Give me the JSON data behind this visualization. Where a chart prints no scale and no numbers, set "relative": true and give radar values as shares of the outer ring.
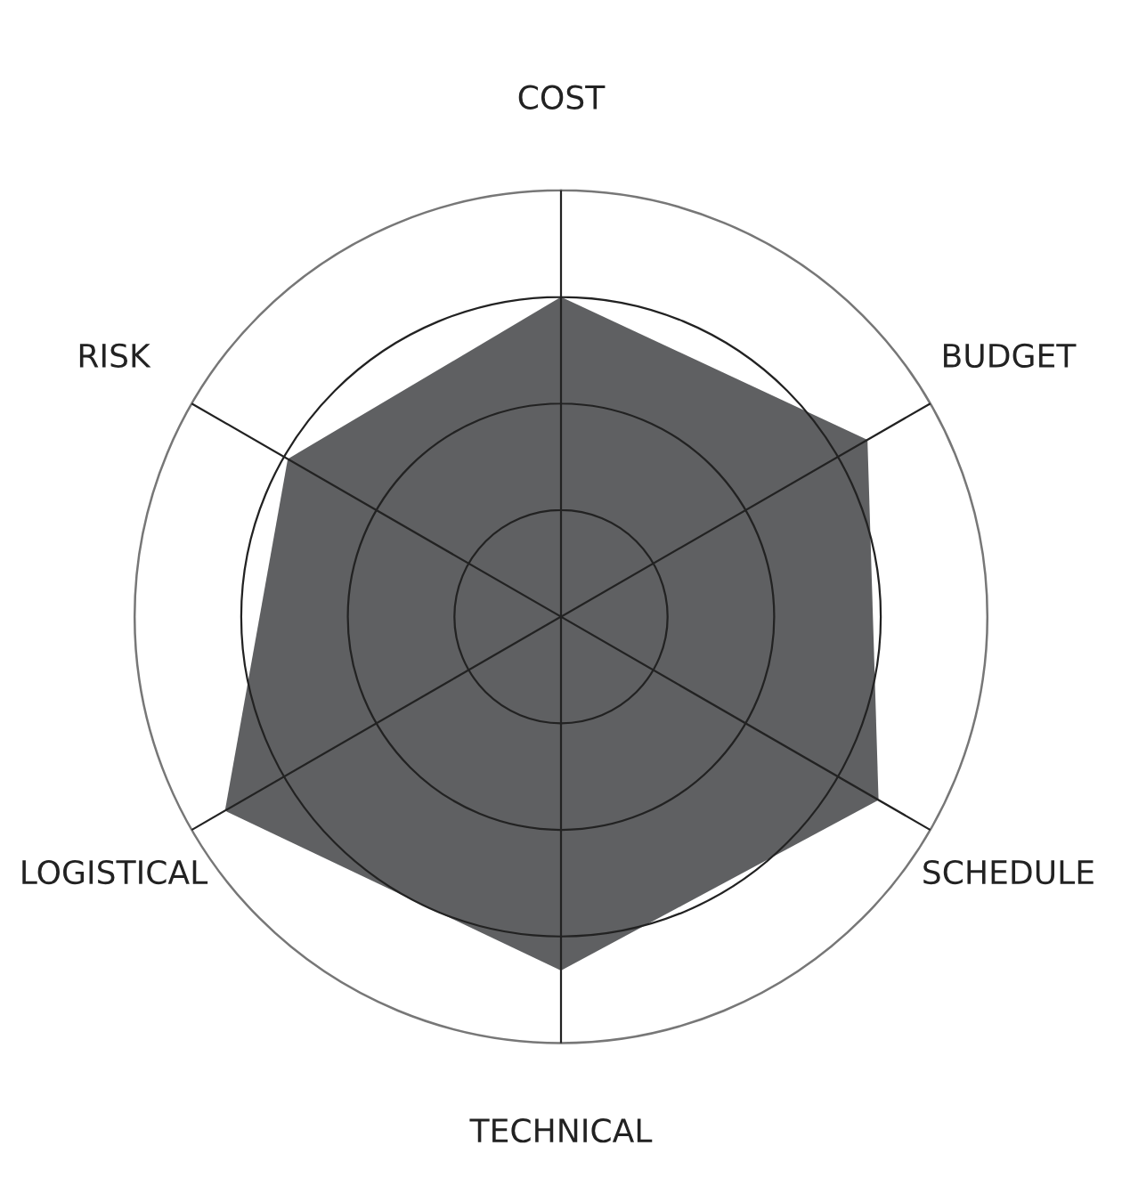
{
  "chart_data": {
    "type": "radar",
    "relative": true,
    "grid": true,
    "categories": [
      "COST",
      "BUDGET",
      "SCHEDULE",
      "TECHNICAL",
      "LOGISTICAL",
      "RISK"
    ],
    "series": [
      {
        "color": "#5f6062",
        "values": [
          0.75,
          0.83,
          0.86,
          0.83,
          0.91,
          0.74
        ]
      }
    ]
  }
}
